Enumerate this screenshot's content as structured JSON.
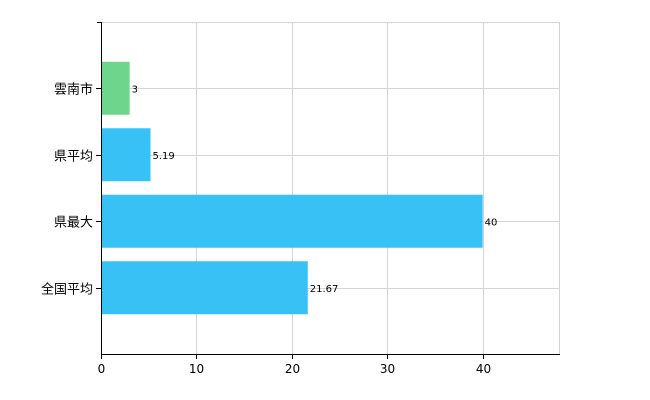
{
  "chart_data": {
    "type": "bar",
    "orientation": "horizontal",
    "categories": [
      "雲南市",
      "県平均",
      "県最大",
      "全国平均"
    ],
    "values": [
      3,
      5.19,
      40,
      21.67
    ],
    "value_labels": [
      "3",
      "5.19",
      "40",
      "21.67"
    ],
    "bar_colors": [
      "#6dd58c",
      "#38c1f5",
      "#38c1f5",
      "#38c1f5"
    ],
    "xlim": [
      0,
      48
    ],
    "xticks": [
      0,
      10,
      20,
      30,
      40
    ],
    "xtick_labels": [
      "0",
      "10",
      "20",
      "30",
      "40"
    ],
    "grid": true,
    "grid_color": "#d4d4d4",
    "axis_color": "#000000",
    "title": "",
    "xlabel": "",
    "ylabel": ""
  }
}
